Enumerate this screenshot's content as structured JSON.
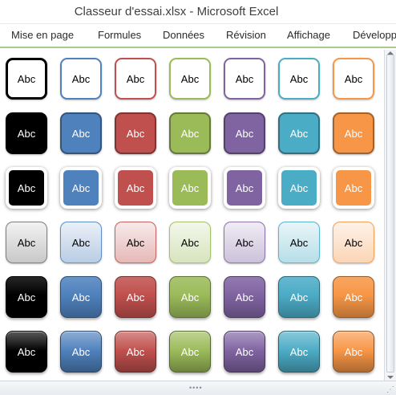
{
  "window": {
    "title": "Classeur d'essai.xlsx  -  Microsoft Excel"
  },
  "ribbon": {
    "tabs": [
      {
        "label": "Mise en page"
      },
      {
        "label": "Formules"
      },
      {
        "label": "Données"
      },
      {
        "label": "Révision"
      },
      {
        "label": "Affichage"
      },
      {
        "label": "Développ"
      }
    ]
  },
  "gallery": {
    "label": "Abc",
    "colors": [
      "#000000",
      "#4f81bd",
      "#c0504d",
      "#9bbb59",
      "#8064a2",
      "#4bacc6",
      "#f79646"
    ],
    "row_styles": [
      "outline",
      "filled-bordered",
      "filled-white-border",
      "subtle-gradient",
      "intense",
      "glossy"
    ]
  },
  "grip": {
    "dots": "••••",
    "corner": "⋰"
  }
}
